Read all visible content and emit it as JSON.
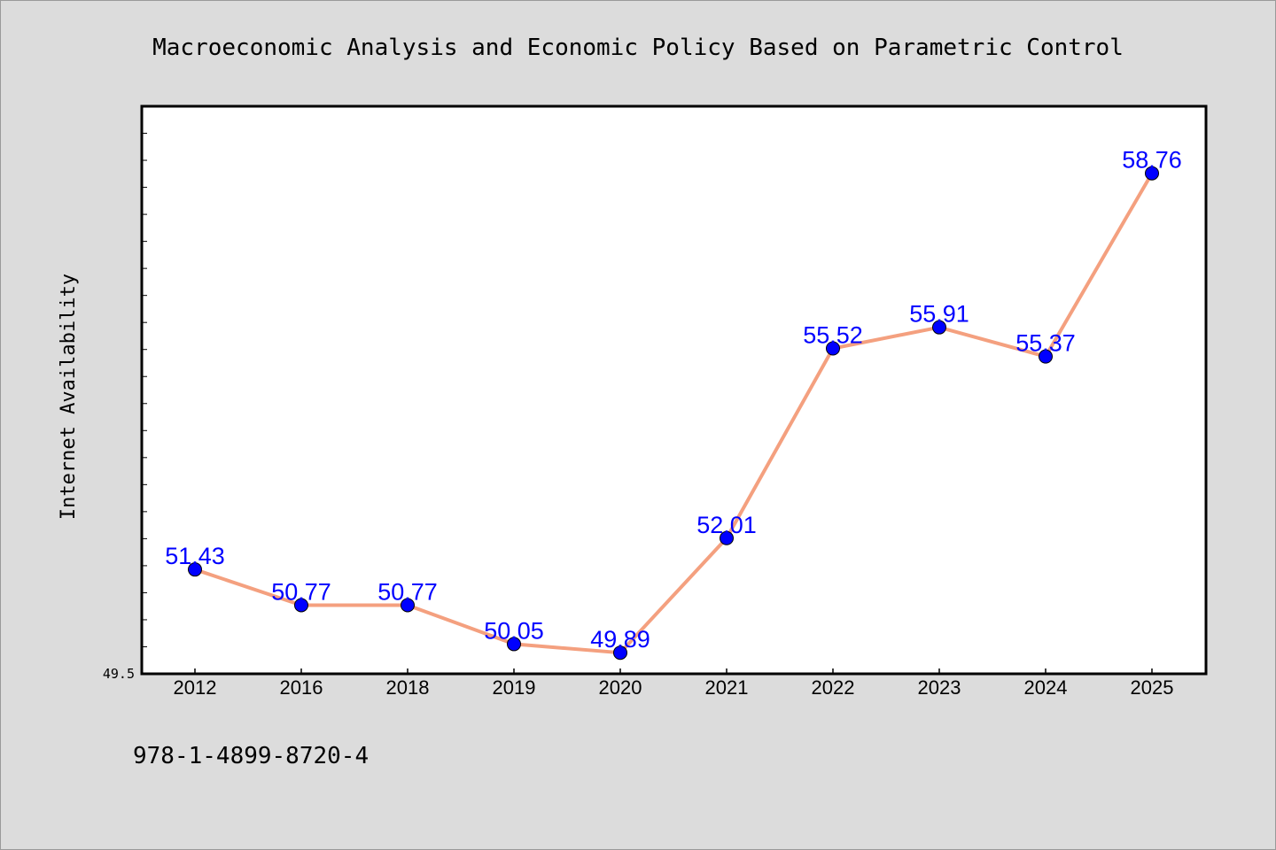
{
  "chart_data": {
    "type": "line",
    "title": "Macroeconomic Analysis and Economic Policy Based on Parametric Control",
    "ylabel": "Internet Availability",
    "xlabel": "",
    "categories": [
      "2012",
      "2016",
      "2018",
      "2019",
      "2020",
      "2021",
      "2022",
      "2023",
      "2024",
      "2025"
    ],
    "series": [
      {
        "values": [
          51.43,
          50.77,
          50.77,
          50.05,
          49.89,
          52.01,
          55.52,
          55.91,
          55.37,
          58.76
        ]
      }
    ],
    "data_labels": [
      "51.43",
      "50.77",
      "50.77",
      "50.05",
      "49.89",
      "52.01",
      "55.52",
      "55.91",
      "55.37",
      "58.76"
    ],
    "ylim": [
      49.5,
      60.0
    ],
    "yticks_labeled": [
      "49.5"
    ],
    "grid": false,
    "legend": "none",
    "colors": {
      "line": "#f4a07f",
      "marker": "#0000ff",
      "label": "#0000ff",
      "plot_bg": "#ffffff",
      "page_bg": "#dcdcdc"
    }
  },
  "footer": {
    "isbn": "978-1-4899-8720-4"
  }
}
